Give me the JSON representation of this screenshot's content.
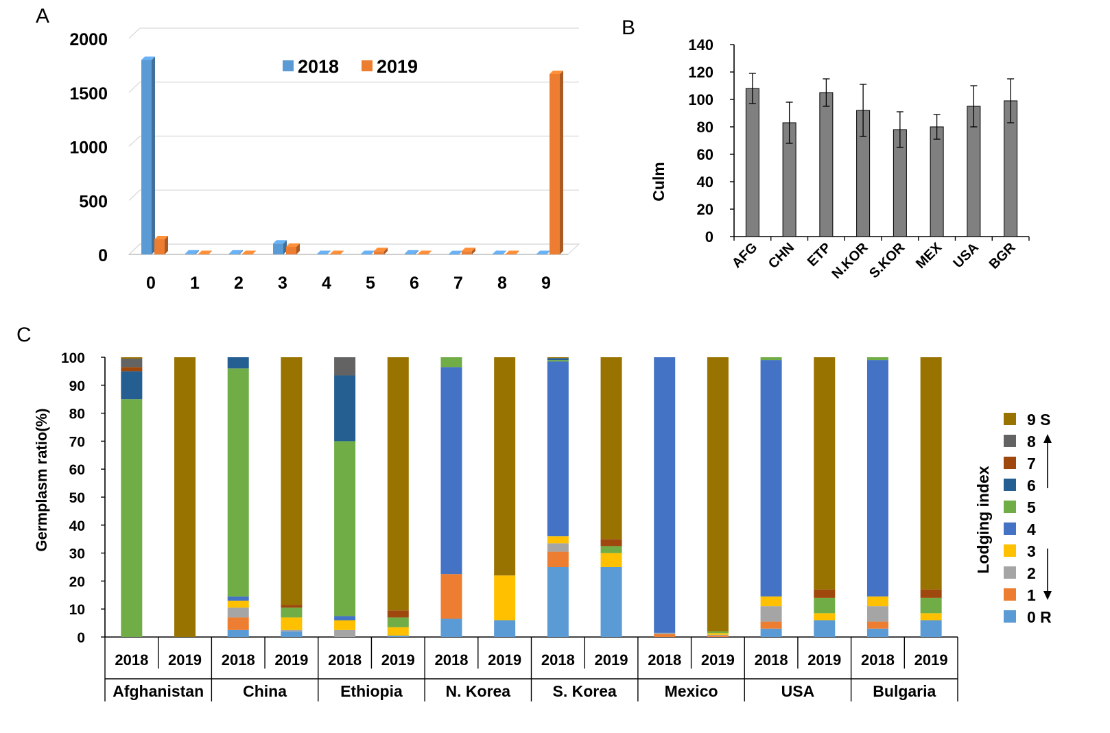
{
  "colors": {
    "y2018": "#5B9BD5",
    "y2019": "#ED7D31",
    "gray_bar": "#808080",
    "grid": "#D9D9D9",
    "lodging": {
      "0": "#5B9BD5",
      "1": "#ED7D31",
      "2": "#A5A5A5",
      "3": "#FFC000",
      "4": "#4472C4",
      "5": "#70AD47",
      "6": "#255E91",
      "7": "#9E480E",
      "8": "#636363",
      "9": "#997300"
    }
  },
  "chart_data": [
    {
      "panel": "A",
      "type": "bar",
      "style": "3d-clustered",
      "title": "",
      "xlabel": "",
      "ylabel": "",
      "categories": [
        "0",
        "1",
        "2",
        "3",
        "4",
        "5",
        "6",
        "7",
        "8",
        "9"
      ],
      "ylim": [
        0,
        2000
      ],
      "yticks": [
        "0",
        "500",
        "1000",
        "1500",
        "2000"
      ],
      "grid": true,
      "legend": "top-center",
      "series": [
        {
          "name": "2018",
          "values": [
            1800,
            8,
            8,
            100,
            3,
            3,
            8,
            2,
            3,
            3
          ]
        },
        {
          "name": "2019",
          "values": [
            140,
            3,
            3,
            70,
            3,
            30,
            3,
            30,
            3,
            1670
          ]
        }
      ]
    },
    {
      "panel": "B",
      "type": "bar",
      "title": "",
      "xlabel": "",
      "ylabel": "Culm",
      "categories": [
        "AFG",
        "CHN",
        "ETP",
        "N.KOR",
        "S.KOR",
        "MEX",
        "USA",
        "BGR"
      ],
      "values": [
        108,
        83,
        105,
        92,
        78,
        80,
        95,
        99
      ],
      "errors": [
        11,
        15,
        10,
        19,
        13,
        9,
        15,
        16
      ],
      "ylim": [
        0,
        140
      ],
      "yticks": [
        "0",
        "20",
        "40",
        "60",
        "80",
        "100",
        "120",
        "140"
      ],
      "grid": false
    },
    {
      "panel": "C",
      "type": "bar",
      "style": "stacked-100",
      "title": "",
      "xlabel": "",
      "ylabel": "Germplasm ratio(%)",
      "ylim": [
        0,
        100
      ],
      "yticks": [
        "0",
        "10",
        "20",
        "30",
        "40",
        "50",
        "60",
        "70",
        "80",
        "90",
        "100"
      ],
      "legend": "right",
      "legend_title": "Lodging index",
      "legend_entries": [
        {
          "key": "9",
          "label": "9 S"
        },
        {
          "key": "8",
          "label": "8"
        },
        {
          "key": "7",
          "label": "7"
        },
        {
          "key": "6",
          "label": "6"
        },
        {
          "key": "5",
          "label": "5"
        },
        {
          "key": "4",
          "label": "4"
        },
        {
          "key": "3",
          "label": "3"
        },
        {
          "key": "2",
          "label": "2"
        },
        {
          "key": "1",
          "label": "1"
        },
        {
          "key": "0",
          "label": "0 R"
        }
      ],
      "groups": [
        "Afghanistan",
        "China",
        "Ethiopia",
        "N. Korea",
        "S. Korea",
        "Mexico",
        "USA",
        "Bulgaria"
      ],
      "years": [
        "2018",
        "2019"
      ],
      "bars": [
        {
          "country": "Afghanistan",
          "year": "2018",
          "values": [
            0,
            0,
            0,
            0,
            0,
            85,
            10,
            1.5,
            3,
            0.5
          ]
        },
        {
          "country": "Afghanistan",
          "year": "2019",
          "values": [
            0,
            0,
            0,
            0,
            0,
            0,
            0,
            0,
            0,
            100
          ]
        },
        {
          "country": "China",
          "year": "2018",
          "values": [
            2.5,
            4.5,
            3.5,
            2.5,
            1.5,
            81.5,
            4,
            0,
            0,
            0
          ]
        },
        {
          "country": "China",
          "year": "2019",
          "values": [
            2,
            0,
            0.5,
            4.5,
            0,
            3.5,
            0,
            1,
            0,
            88.5
          ]
        },
        {
          "country": "Ethiopia",
          "year": "2018",
          "values": [
            0,
            0,
            2.5,
            3.5,
            1.5,
            62.5,
            23.5,
            0,
            6.5,
            0
          ]
        },
        {
          "country": "Ethiopia",
          "year": "2019",
          "values": [
            0.5,
            0,
            0,
            3,
            0,
            3.5,
            0,
            2.5,
            0,
            90.5
          ]
        },
        {
          "country": "N. Korea",
          "year": "2018",
          "values": [
            6.5,
            16,
            0,
            0,
            74,
            3.5,
            0,
            0,
            0,
            0
          ]
        },
        {
          "country": "N. Korea",
          "year": "2019",
          "values": [
            6,
            0,
            0,
            16,
            0,
            0,
            0,
            0,
            0,
            78
          ]
        },
        {
          "country": "S. Korea",
          "year": "2018",
          "values": [
            25,
            5.5,
            3,
            2.5,
            62.5,
            0.5,
            0.7,
            0,
            0,
            0.3
          ]
        },
        {
          "country": "S. Korea",
          "year": "2019",
          "values": [
            25,
            0,
            0,
            5,
            0,
            2.5,
            0,
            2.5,
            0,
            65
          ]
        },
        {
          "country": "Mexico",
          "year": "2018",
          "values": [
            0,
            1,
            0.5,
            0,
            98.5,
            0,
            0,
            0,
            0,
            0
          ]
        },
        {
          "country": "Mexico",
          "year": "2019",
          "values": [
            0,
            0.5,
            0.3,
            0.6,
            0,
            0.6,
            0,
            0,
            0,
            98
          ]
        },
        {
          "country": "USA",
          "year": "2018",
          "values": [
            3,
            2.5,
            5.5,
            3.5,
            84.5,
            1,
            0,
            0,
            0,
            0
          ]
        },
        {
          "country": "USA",
          "year": "2019",
          "values": [
            6,
            0,
            0,
            2.5,
            0,
            5.5,
            0,
            3,
            0,
            83
          ]
        },
        {
          "country": "Bulgaria",
          "year": "2018",
          "values": [
            3,
            2.5,
            5.5,
            3.5,
            84.5,
            1,
            0,
            0,
            0,
            0
          ]
        },
        {
          "country": "Bulgaria",
          "year": "2019",
          "values": [
            6,
            0,
            0,
            2.5,
            0,
            5.5,
            0,
            3,
            0,
            83
          ]
        }
      ]
    }
  ],
  "panel_labels": {
    "a": "A",
    "b": "B",
    "c": "C"
  }
}
